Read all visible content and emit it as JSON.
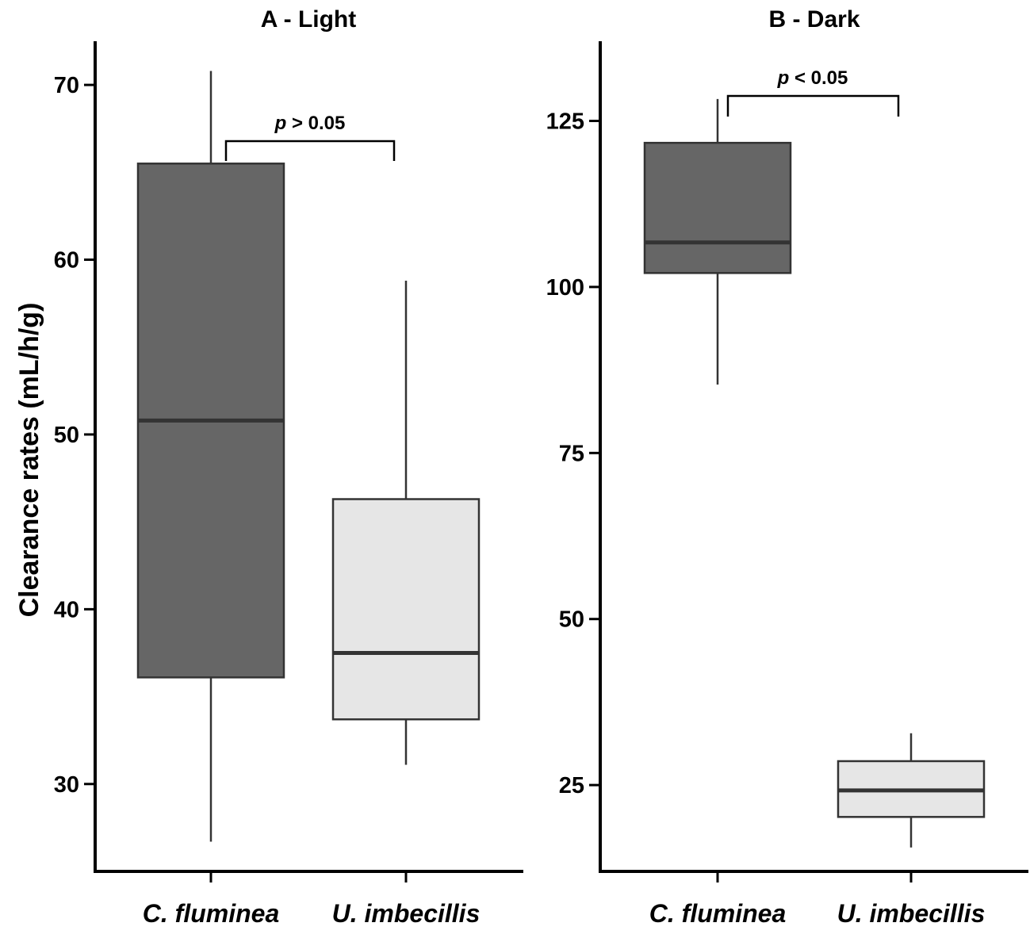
{
  "chart_data": [
    {
      "type": "boxplot",
      "title": "A - Light",
      "ylabel": "Clearance rates (mL/h/g)",
      "ylim": [
        25,
        72.5
      ],
      "yticks": [
        30,
        40,
        50,
        60,
        70
      ],
      "categories": [
        "C. fluminea",
        "U. imbecillis"
      ],
      "boxes": [
        {
          "category": "C. fluminea",
          "min": 26.7,
          "q1": 36.1,
          "median": 50.8,
          "q3": 65.5,
          "max": 70.8,
          "fill": "#666666"
        },
        {
          "category": "U. imbecillis",
          "min": 31.1,
          "q1": 33.7,
          "median": 37.5,
          "q3": 46.3,
          "max": 58.8,
          "fill": "#e6e6e6"
        }
      ],
      "comparison": {
        "p_symbol": "p",
        "p_text": " > 0.05"
      }
    },
    {
      "type": "boxplot",
      "title": "B - Dark",
      "ylabel": "",
      "ylim": [
        12,
        137
      ],
      "yticks": [
        25,
        50,
        75,
        100,
        125
      ],
      "categories": [
        "C. fluminea",
        "U. imbecillis"
      ],
      "boxes": [
        {
          "category": "C. fluminea",
          "min": 85.3,
          "q1": 102.1,
          "median": 106.7,
          "q3": 121.7,
          "max": 128.3,
          "fill": "#666666"
        },
        {
          "category": "U. imbecillis",
          "min": 15.6,
          "q1": 20.2,
          "median": 24.2,
          "q3": 28.6,
          "max": 32.8,
          "fill": "#e6e6e6"
        }
      ],
      "comparison": {
        "p_symbol": "p",
        "p_text": " < 0.05"
      }
    }
  ],
  "colors": {
    "axis": "#000000",
    "box_edge": "#333333",
    "whisker": "#333333"
  }
}
